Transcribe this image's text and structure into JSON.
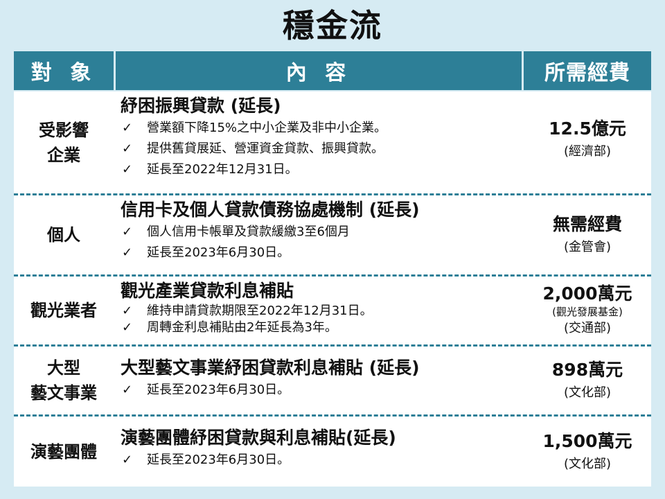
{
  "title": "穩金流",
  "header": {
    "subject": "對 象",
    "content": "內 容",
    "cost": "所需經費"
  },
  "rows": [
    {
      "subject": [
        "受影響",
        "企業"
      ],
      "title": "紓困振興貸款 (延長)",
      "items": [
        "營業額下降15%之中小企業及非中小企業。",
        "提供舊貸展延、營運資金貸款、振興貸款。",
        "延長至2022年12月31日。"
      ],
      "amount": "12.5億元",
      "dept": "(經濟部)"
    },
    {
      "subject": [
        "個人"
      ],
      "title": "信用卡及個人貸款債務協處機制 (延長)",
      "items": [
        "個人信用卡帳單及貸款緩繳3至6個月",
        "延長至2023年6月30日。"
      ],
      "amount": "無需經費",
      "dept": "(金管會)"
    },
    {
      "subject": [
        "觀光業者"
      ],
      "title": "觀光產業貸款利息補貼",
      "items": [
        "維持申請貸款期限至2022年12月31日。",
        "周轉金利息補貼由2年延長為3年。"
      ],
      "amount": "2,000萬元",
      "sub": "(觀光發展基金)",
      "dept": "(交通部)"
    },
    {
      "subject": [
        "大型",
        "藝文事業"
      ],
      "title": "大型藝文事業紓困貸款利息補貼 (延長)",
      "items": [
        "延長至2023年6月30日。"
      ],
      "amount": "898萬元",
      "dept": "(文化部)"
    },
    {
      "subject": [
        "演藝團體"
      ],
      "title": "演藝團體紓困貸款與利息補貼(延長)",
      "items": [
        "延長至2023年6月30日。"
      ],
      "amount": "1,500萬元",
      "dept": "(文化部)"
    }
  ],
  "check_mark": "✓"
}
